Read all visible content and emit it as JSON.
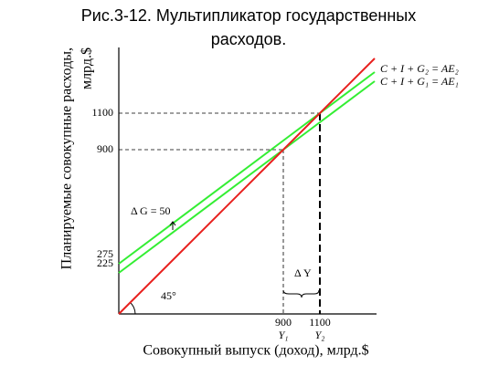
{
  "chart_data": {
    "type": "line",
    "title": [
      "Рис.3-12. Мультипликатор государственных",
      "расходов."
    ],
    "y_label": [
      "Планируемые совокупные расходы,",
      "млрд.$"
    ],
    "x_label": "Совокупный выпуск (доход), млрд.$",
    "x": [
      0,
      900,
      1100,
      1400
    ],
    "series": [
      {
        "name": "C + I + G₂ = AE₂",
        "color": "#33ee33",
        "values": [
          275,
          950,
          1100,
          1325
        ]
      },
      {
        "name": "C + I + G₁ = AE₁",
        "color": "#33ee33",
        "values": [
          225,
          900,
          1050,
          1275
        ]
      },
      {
        "color": "#e8201e",
        "values": [
          0,
          900,
          1100,
          1400
        ]
      }
    ],
    "xlim": [
      0,
      1400
    ],
    "ylim": [
      0,
      1460
    ],
    "xticks": [
      900,
      1100
    ],
    "yticks": [
      225,
      275,
      900,
      1100
    ],
    "x_tick_sublabels": [
      "Y₁",
      "Y₂"
    ],
    "annotations": [
      "Δ G = 50",
      "Δ Y",
      "45°"
    ]
  }
}
